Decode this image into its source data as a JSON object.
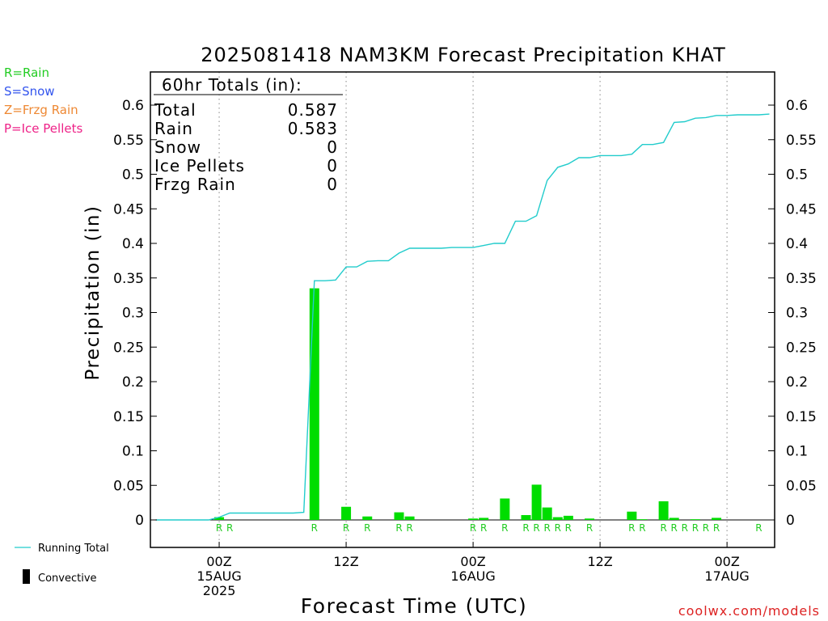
{
  "header": {
    "title": "2025081418 NAM3KM Forecast Precipitation KHAT"
  },
  "legend_left": {
    "rain": {
      "label": "R=Rain",
      "color": "#22cc22"
    },
    "snow": {
      "label": "S=Snow",
      "color": "#3355ee"
    },
    "frzg": {
      "label": "Z=Frzg Rain",
      "color": "#ee8833"
    },
    "ice": {
      "label": "P=Ice Pellets",
      "color": "#ee2288"
    }
  },
  "totals": {
    "heading": "60hr Totals (in):",
    "rows": [
      {
        "label": "Total",
        "value": "0.587"
      },
      {
        "label": "Rain",
        "value": "0.583"
      },
      {
        "label": "Snow",
        "value": "0"
      },
      {
        "label": "Ice Pellets",
        "value": "0"
      },
      {
        "label": "Frzg Rain",
        "value": "0"
      }
    ]
  },
  "bottom_legend": {
    "running_total": "Running Total",
    "convective": "Convective"
  },
  "credit": "coolwx.com/models",
  "colors": {
    "bar": "#00dd00",
    "line": "#22cccc",
    "ptype_rain": "#22cc22",
    "credit": "#dd2222",
    "grid": "#999999"
  },
  "chart_data": {
    "type": "bar",
    "title": "2025081418 NAM3KM Forecast Precipitation KHAT",
    "xlabel": "Forecast Time (UTC)",
    "ylabel": "Precipitation (in)",
    "ylim": [
      0,
      0.65
    ],
    "yticks": [
      0,
      0.05,
      0.1,
      0.15,
      0.2,
      0.25,
      0.3,
      0.35,
      0.4,
      0.45,
      0.5,
      0.55,
      0.6
    ],
    "ytick_labels": [
      "0",
      "0.05",
      "0.1",
      "0.15",
      "0.2",
      "0.25",
      "0.3",
      "0.35",
      "0.4",
      "0.45",
      "0.5",
      "0.55",
      "0.6"
    ],
    "x_units": "forecast hour",
    "xlim": [
      -0.5,
      58.5
    ],
    "xticks": [
      {
        "hour": 6,
        "lines": [
          "00Z",
          "15AUG",
          "2025"
        ]
      },
      {
        "hour": 18,
        "lines": [
          "12Z"
        ]
      },
      {
        "hour": 30,
        "lines": [
          "00Z",
          "16AUG"
        ]
      },
      {
        "hour": 42,
        "lines": [
          "12Z"
        ]
      },
      {
        "hour": 54,
        "lines": [
          "00Z",
          "17AUG"
        ]
      }
    ],
    "grid": "vertical dotted at xticks",
    "series": [
      {
        "name": "Convective",
        "kind": "bar",
        "x": [
          6,
          15,
          18,
          20,
          23,
          24,
          30,
          31,
          33,
          35,
          36,
          37,
          38,
          39,
          41,
          45,
          46,
          48,
          49,
          51,
          53
        ],
        "values": [
          0.004,
          0.335,
          0.019,
          0.005,
          0.011,
          0.005,
          0.002,
          0.003,
          0.031,
          0.007,
          0.051,
          0.018,
          0.004,
          0.006,
          0.002,
          0.012,
          0.001,
          0.027,
          0.003,
          0.001,
          0.003
        ]
      },
      {
        "name": "Running Total",
        "kind": "line",
        "x": [
          0,
          1,
          2,
          3,
          4,
          5,
          6,
          7,
          8,
          9,
          10,
          11,
          12,
          13,
          14,
          15,
          16,
          17,
          18,
          19,
          20,
          21,
          22,
          23,
          24,
          25,
          26,
          27,
          28,
          29,
          30,
          31,
          32,
          33,
          34,
          35,
          36,
          37,
          38,
          39,
          40,
          41,
          42,
          43,
          44,
          45,
          46,
          47,
          48,
          49,
          50,
          51,
          52,
          53,
          54,
          55,
          56,
          57,
          58
        ],
        "values": [
          0,
          0,
          0,
          0,
          0,
          0,
          0.004,
          0.01,
          0.01,
          0.01,
          0.01,
          0.01,
          0.01,
          0.01,
          0.011,
          0.346,
          0.346,
          0.347,
          0.366,
          0.366,
          0.374,
          0.375,
          0.375,
          0.386,
          0.393,
          0.393,
          0.393,
          0.393,
          0.394,
          0.394,
          0.394,
          0.397,
          0.4,
          0.4,
          0.432,
          0.432,
          0.44,
          0.491,
          0.51,
          0.515,
          0.524,
          0.524,
          0.527,
          0.527,
          0.527,
          0.529,
          0.543,
          0.543,
          0.546,
          0.575,
          0.576,
          0.581,
          0.582,
          0.585,
          0.585,
          0.586,
          0.586,
          0.586,
          0.587
        ]
      }
    ],
    "ptype_markers": {
      "hours": [
        6,
        7,
        15,
        18,
        20,
        23,
        24,
        30,
        31,
        33,
        35,
        36,
        37,
        38,
        39,
        41,
        45,
        46,
        48,
        49,
        50,
        51,
        52,
        53,
        57
      ],
      "labels": [
        "R",
        "R",
        "R",
        "R",
        "R",
        "R",
        "R",
        "R",
        "R",
        "R",
        "R",
        "R",
        "R",
        "R",
        "R",
        "R",
        "R",
        "R",
        "R",
        "R",
        "R",
        "R",
        "R",
        "R",
        "R"
      ]
    }
  }
}
